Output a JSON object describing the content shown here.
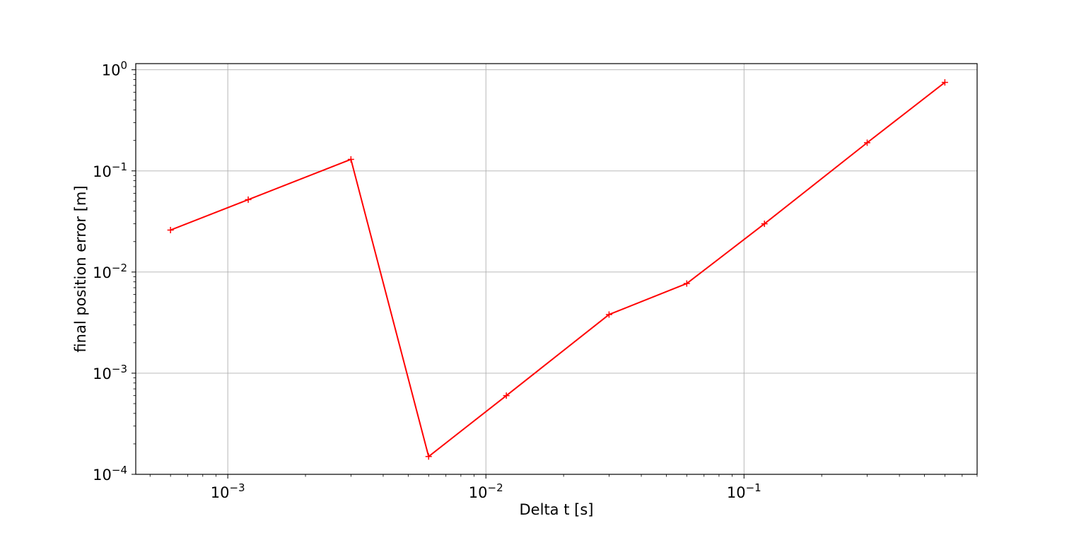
{
  "chart_data": {
    "type": "line",
    "title": "",
    "xlabel": "Delta t [s]",
    "ylabel": "final position error [m]",
    "xscale": "log",
    "yscale": "log",
    "xlim": [
      0.00044,
      0.8
    ],
    "ylim": [
      0.0001,
      1.15
    ],
    "grid": true,
    "x_ticks": [
      {
        "value": 0.001,
        "base": "10",
        "exp": "−3"
      },
      {
        "value": 0.01,
        "base": "10",
        "exp": "−2"
      },
      {
        "value": 0.1,
        "base": "10",
        "exp": "−1"
      }
    ],
    "y_ticks": [
      {
        "value": 0.0001,
        "base": "10",
        "exp": "−4"
      },
      {
        "value": 0.001,
        "base": "10",
        "exp": "−3"
      },
      {
        "value": 0.01,
        "base": "10",
        "exp": "−2"
      },
      {
        "value": 0.1,
        "base": "10",
        "exp": "−1"
      },
      {
        "value": 1,
        "base": "10",
        "exp": "0"
      }
    ],
    "series": [
      {
        "color": "#ff0000",
        "marker": "+",
        "x": [
          0.0006,
          0.0012,
          0.003,
          0.006,
          0.012,
          0.03,
          0.06,
          0.12,
          0.3,
          0.6
        ],
        "y": [
          0.026,
          0.052,
          0.13,
          0.00015,
          0.0006,
          0.0038,
          0.0077,
          0.03,
          0.19,
          0.75
        ]
      }
    ]
  }
}
